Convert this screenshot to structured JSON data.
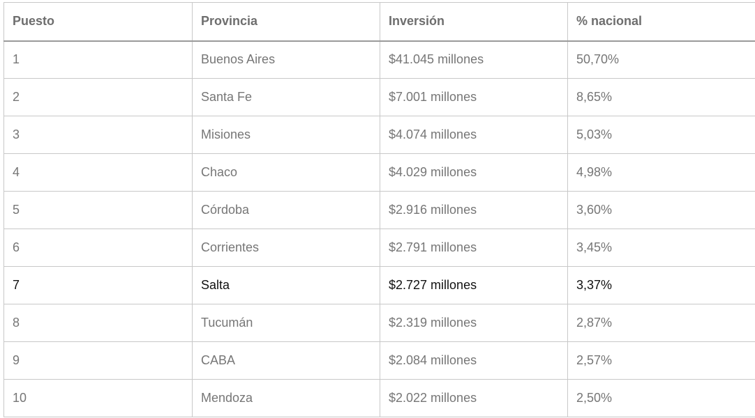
{
  "table": {
    "header": [
      "Puesto",
      "Provincia",
      "Inversión",
      "% nacional"
    ],
    "rows": [
      [
        "1",
        "Buenos Aires",
        "$41.045 millones",
        "50,70%"
      ],
      [
        "2",
        "Santa Fe",
        "$7.001 millones",
        "8,65%"
      ],
      [
        "3",
        "Misiones",
        "$4.074 millones",
        "5,03%"
      ],
      [
        "4",
        "Chaco",
        "$4.029 millones",
        "4,98%"
      ],
      [
        "5",
        "Córdoba",
        "$2.916 millones",
        "3,60%"
      ],
      [
        "6",
        "Corrientes",
        "$2.791 millones",
        "3,45%"
      ],
      [
        "7",
        "Salta",
        "$2.727 millones",
        "3,37%"
      ],
      [
        "8",
        "Tucumán",
        "$2.319 millones",
        "2,87%"
      ],
      [
        "9",
        "CABA",
        "$2.084 millones",
        "2,57%"
      ],
      [
        "10",
        "Mendoza",
        "$2.022 millones",
        "2,50%"
      ]
    ]
  }
}
